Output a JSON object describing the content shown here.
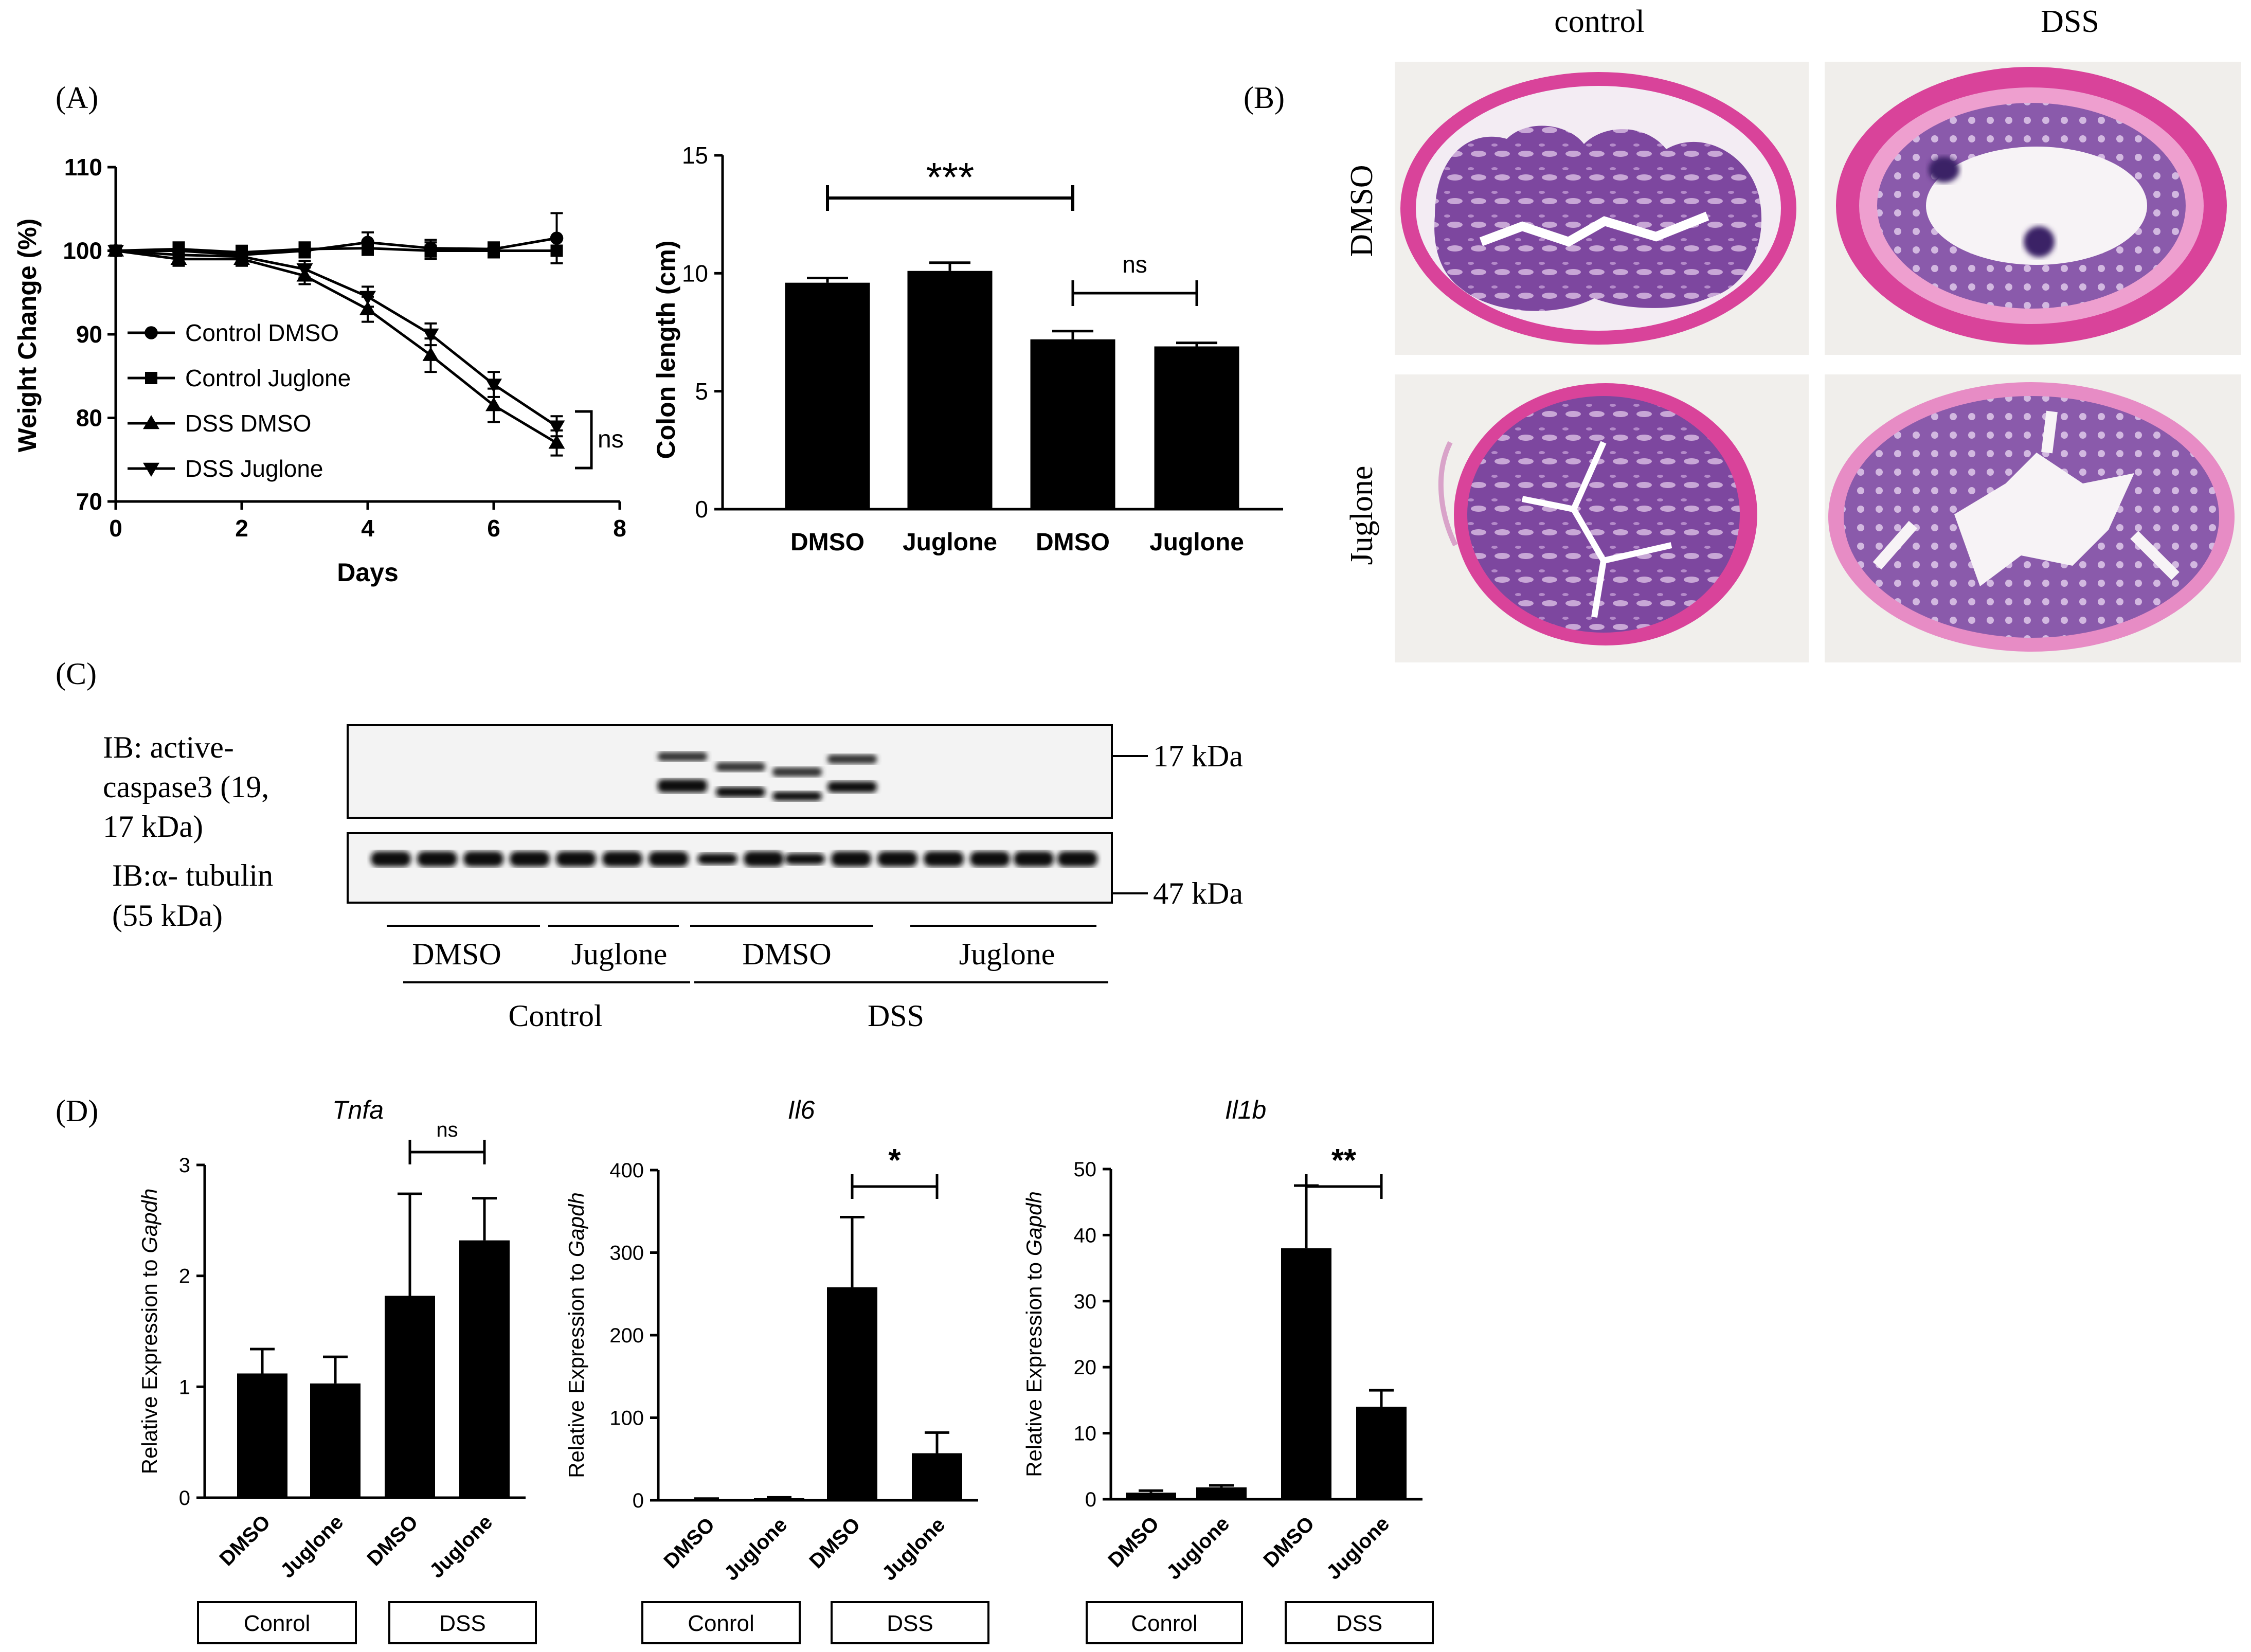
{
  "colors": {
    "bar": "#000000",
    "he_pink": "#d9439a",
    "he_purple": "#6e3d96",
    "blot_bg": "#f3f3f3"
  },
  "panel_a": {
    "label": "(A)",
    "weight_chart": {
      "type": "line",
      "xlabel": "Days",
      "ylabel": "Weight Change (%)",
      "xlim": [
        0,
        8
      ],
      "ylim": [
        70,
        110
      ],
      "xticks": [
        "0",
        "2",
        "4",
        "6",
        "8"
      ],
      "yticks": [
        "70",
        "80",
        "90",
        "100",
        "110"
      ],
      "significance": "ns",
      "series": [
        {
          "name": "Control DMSO",
          "marker": "circle",
          "x": [
            0,
            1,
            2,
            3,
            4,
            5,
            6,
            7
          ],
          "y": [
            100,
            100,
            99.5,
            100,
            101,
            100.3,
            100.2,
            101.5
          ],
          "err": [
            0.5,
            0.8,
            0.8,
            0.8,
            1.2,
            1,
            0.8,
            3
          ]
        },
        {
          "name": "Control Juglone",
          "marker": "square",
          "x": [
            0,
            1,
            2,
            3,
            4,
            5,
            6,
            7
          ],
          "y": [
            100,
            100.2,
            99.8,
            100.2,
            100.3,
            100,
            100,
            100
          ],
          "err": [
            0.5,
            0.8,
            0.8,
            0.8,
            0.8,
            1,
            0.8,
            1.5
          ]
        },
        {
          "name": "DSS DMSO",
          "marker": "triangle-up",
          "x": [
            0,
            1,
            2,
            3,
            4,
            5,
            6,
            7
          ],
          "y": [
            100,
            99,
            99,
            97,
            93,
            87.5,
            81.5,
            77
          ],
          "err": [
            0.5,
            0.8,
            0.8,
            1,
            1.5,
            2,
            2,
            1.5
          ]
        },
        {
          "name": "DSS Juglone",
          "marker": "triangle-down",
          "x": [
            0,
            1,
            2,
            3,
            4,
            5,
            6,
            7
          ],
          "y": [
            100,
            99.5,
            99.3,
            97.8,
            94.5,
            90,
            84,
            79
          ],
          "err": [
            0.5,
            0.8,
            0.8,
            1,
            1.2,
            1.3,
            1.5,
            1.2
          ]
        }
      ]
    },
    "colon_chart": {
      "type": "bar",
      "ylabel": "Colon length (cm)",
      "ylim": [
        0,
        15
      ],
      "yticks": [
        "0",
        "5",
        "10",
        "15"
      ],
      "categories": [
        "DMSO",
        "Juglone",
        "DMSO",
        "Juglone"
      ],
      "values": [
        9.6,
        10.1,
        7.2,
        6.9
      ],
      "errors": [
        0.2,
        0.35,
        0.35,
        0.15
      ],
      "significance": [
        {
          "from": 0,
          "to": 2,
          "label": "***"
        },
        {
          "from": 2,
          "to": 3,
          "label": "ns"
        }
      ]
    }
  },
  "panel_b": {
    "label": "(B)",
    "col_labels": [
      "control",
      "DSS"
    ],
    "row_labels": [
      "DMSO",
      "Juglone"
    ]
  },
  "panel_c": {
    "label": "(C)",
    "blot1_label_lines": [
      "IB: active-",
      "caspase3 (19,",
      "17 kDa)"
    ],
    "blot2_label_lines": [
      "IB:α- tubulin",
      "(55 kDa)"
    ],
    "marker_17": "17 kDa",
    "marker_47": "47 kDa",
    "group_labels": [
      "DMSO",
      "Juglone",
      "DMSO",
      "Juglone"
    ],
    "super_labels": [
      "Control",
      "DSS"
    ]
  },
  "panel_d": {
    "label": "(D)",
    "ylabel_prefix": "Relative Expression to ",
    "ylabel_gene": "Gapdh",
    "charts": [
      {
        "type": "bar",
        "title": "Tnfa",
        "ylim": [
          0,
          3
        ],
        "yticks": [
          "0",
          "1",
          "2",
          "3"
        ],
        "categories": [
          "DMSO",
          "Juglone",
          "DMSO",
          "Juglone"
        ],
        "values": [
          1.12,
          1.03,
          1.82,
          2.32
        ],
        "errors": [
          0.22,
          0.24,
          0.92,
          0.38
        ],
        "significance": {
          "from": 2,
          "to": 3,
          "label": "ns"
        },
        "groups": [
          "Conrol",
          "DSS"
        ]
      },
      {
        "type": "bar",
        "title": "Il6",
        "ylim": [
          0,
          400
        ],
        "yticks": [
          "0",
          "100",
          "200",
          "300",
          "400"
        ],
        "categories": [
          "DMSO",
          "Juglone",
          "DMSO",
          "Juglone"
        ],
        "values": [
          1.5,
          2.5,
          258,
          57
        ],
        "errors": [
          0.5,
          1,
          85,
          25
        ],
        "significance": {
          "from": 2,
          "to": 3,
          "label": "*"
        },
        "groups": [
          "Conrol",
          "DSS"
        ]
      },
      {
        "type": "bar",
        "title": "Il1b",
        "ylim": [
          0,
          50
        ],
        "yticks": [
          "0",
          "10",
          "20",
          "30",
          "40",
          "50"
        ],
        "categories": [
          "DMSO",
          "Juglone",
          "DMSO",
          "Juglone"
        ],
        "values": [
          1,
          1.8,
          38,
          14
        ],
        "errors": [
          0.3,
          0.3,
          9.5,
          2.5
        ],
        "significance": {
          "from": 2,
          "to": 3,
          "label": "**"
        },
        "groups": [
          "Conrol",
          "DSS"
        ]
      }
    ]
  }
}
